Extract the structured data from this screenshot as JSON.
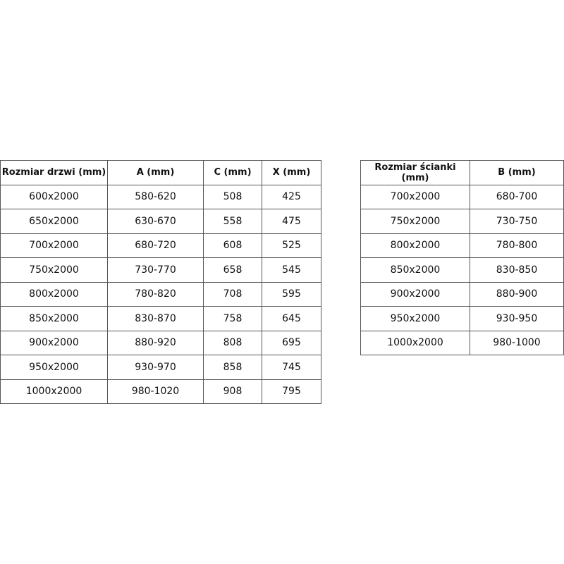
{
  "door_table": {
    "headers": [
      "Rozmiar drzwi (mm)",
      "A (mm)",
      "C (mm)",
      "X (mm)"
    ],
    "rows": [
      [
        "600x2000",
        "580-620",
        "508",
        "425"
      ],
      [
        "650x2000",
        "630-670",
        "558",
        "475"
      ],
      [
        "700x2000",
        "680-720",
        "608",
        "525"
      ],
      [
        "750x2000",
        "730-770",
        "658",
        "545"
      ],
      [
        "800x2000",
        "780-820",
        "708",
        "595"
      ],
      [
        "850x2000",
        "830-870",
        "758",
        "645"
      ],
      [
        "900x2000",
        "880-920",
        "808",
        "695"
      ],
      [
        "950x2000",
        "930-970",
        "858",
        "745"
      ],
      [
        "1000x2000",
        "980-1020",
        "908",
        "795"
      ]
    ]
  },
  "wall_table": {
    "headers": [
      "Rozmiar ścianki (mm)",
      "B (mm)"
    ],
    "rows": [
      [
        "700x2000",
        "680-700"
      ],
      [
        "750x2000",
        "730-750"
      ],
      [
        "800x2000",
        "780-800"
      ],
      [
        "850x2000",
        "830-850"
      ],
      [
        "900x2000",
        "880-900"
      ],
      [
        "950x2000",
        "930-950"
      ],
      [
        "1000x2000",
        "980-1000"
      ]
    ]
  }
}
